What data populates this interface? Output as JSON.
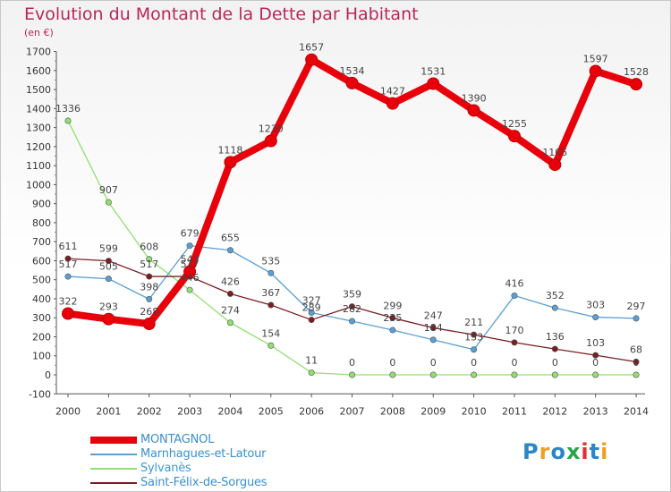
{
  "title": "Evolution du Montant de la Dette par Habitant",
  "unit": "(en €)",
  "logo": {
    "text": "Proxiti",
    "colors": [
      "#2b86c7",
      "#f0a020",
      "#2b86c7",
      "#2aa64a",
      "#e03030",
      "#2b86c7",
      "#f0a020"
    ]
  },
  "chart_data": {
    "type": "line",
    "title": "Evolution du Montant de la Dette par Habitant",
    "ylabel": "(en €)",
    "xlabel": "",
    "ylim": [
      -100,
      1700
    ],
    "yticks": [
      -100,
      0,
      100,
      200,
      300,
      400,
      500,
      600,
      700,
      800,
      900,
      1000,
      1100,
      1200,
      1300,
      1400,
      1500,
      1600,
      1700
    ],
    "x": [
      "2000",
      "2001",
      "2002",
      "2003",
      "2004",
      "2005",
      "2006",
      "2007",
      "2008",
      "2009",
      "2010",
      "2011",
      "2012",
      "2013",
      "2014"
    ],
    "grid": false,
    "legend": "bottom-left",
    "series": [
      {
        "name": "MONTAGNOL",
        "color": "#e8000b",
        "values": [
          322,
          293,
          268,
          543,
          1118,
          1230,
          1657,
          1534,
          1427,
          1531,
          1390,
          1255,
          1105,
          1597,
          1528
        ]
      },
      {
        "name": "Marnhagues-et-Latour",
        "color": "#5a9fd4",
        "values": [
          517,
          505,
          398,
          679,
          655,
          535,
          327,
          282,
          235,
          184,
          133,
          416,
          352,
          303,
          297
        ]
      },
      {
        "name": "Sylvanès",
        "color": "#90e070",
        "values": [
          1336,
          907,
          608,
          446,
          274,
          154,
          11,
          0,
          0,
          0,
          0,
          0,
          0,
          0,
          0
        ]
      },
      {
        "name": "Saint-Félix-de-Sorgues",
        "color": "#7a1e22",
        "values": [
          611,
          599,
          517,
          517,
          426,
          367,
          289,
          359,
          299,
          247,
          211,
          170,
          136,
          103,
          68
        ]
      }
    ]
  }
}
